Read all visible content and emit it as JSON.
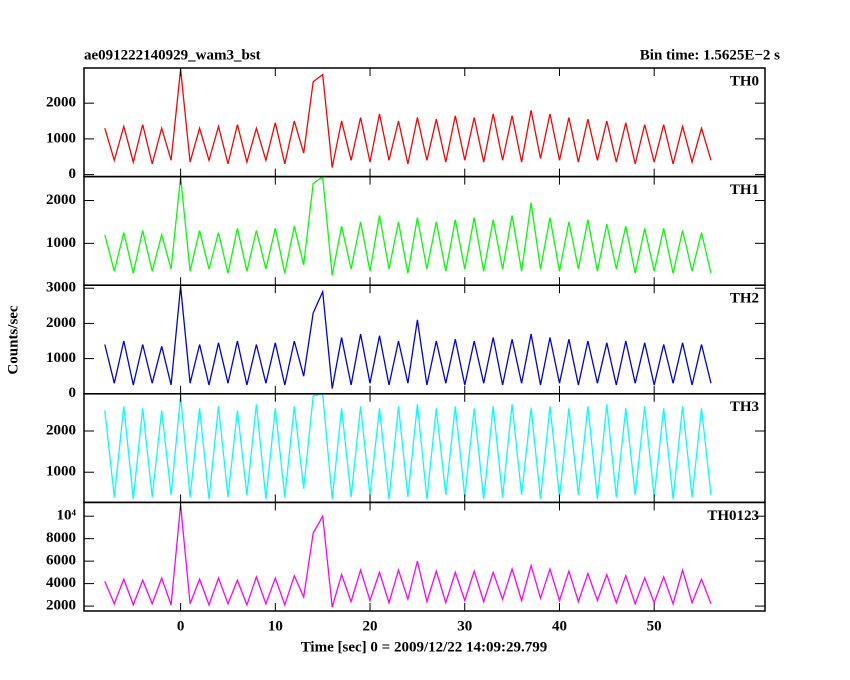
{
  "chart_data": {
    "type": "line",
    "title": "ae091222140929_wam3_bst",
    "subtitle": "Bin time: 1.5625E−2 s",
    "xlabel": "Time [sec] 0 = 2009/12/22 14:09:29.799",
    "ylabel": "Counts/sec",
    "xlim": [
      -10.2,
      61.7
    ],
    "xticks": [
      0,
      10,
      20,
      30,
      40,
      50
    ],
    "x": [
      -8,
      -7,
      -6,
      -5,
      -4,
      -3,
      -2,
      -1,
      0,
      1,
      2,
      3,
      4,
      5,
      6,
      7,
      8,
      9,
      10,
      11,
      12,
      13,
      14,
      15,
      16,
      17,
      18,
      19,
      20,
      21,
      22,
      23,
      24,
      25,
      26,
      27,
      28,
      29,
      30,
      31,
      32,
      33,
      34,
      35,
      36,
      37,
      38,
      39,
      40,
      41,
      42,
      43,
      44,
      45,
      46,
      47,
      48,
      49,
      50,
      51,
      52,
      53,
      54,
      55,
      56
    ],
    "panels": [
      {
        "name": "TH0",
        "color": "#ff0000",
        "ylim": [
          -56,
          2985
        ],
        "yticks": [
          0,
          1000,
          2000
        ],
        "values": [
          1300,
          400,
          1350,
          350,
          1400,
          300,
          1300,
          400,
          2950,
          350,
          1300,
          400,
          1350,
          300,
          1400,
          350,
          1300,
          400,
          1450,
          300,
          1500,
          600,
          2600,
          2800,
          200,
          1500,
          400,
          1600,
          350,
          1700,
          400,
          1500,
          300,
          1600,
          400,
          1550,
          350,
          1650,
          400,
          1600,
          350,
          1700,
          400,
          1650,
          350,
          1800,
          450,
          1700,
          400,
          1600,
          350,
          1550,
          400,
          1500,
          350,
          1450,
          300,
          1400,
          350,
          1400,
          300,
          1350,
          350,
          1300,
          400
        ]
      },
      {
        "name": "TH1",
        "color": "#00ff00",
        "ylim": [
          23,
          2558
        ],
        "yticks": [
          1000,
          2000
        ],
        "values": [
          1200,
          350,
          1250,
          300,
          1300,
          350,
          1200,
          400,
          2550,
          350,
          1300,
          400,
          1250,
          300,
          1350,
          350,
          1300,
          400,
          1350,
          300,
          1400,
          500,
          2400,
          2550,
          250,
          1400,
          400,
          1500,
          350,
          1650,
          400,
          1500,
          300,
          1600,
          400,
          1500,
          350,
          1550,
          400,
          1600,
          350,
          1550,
          400,
          1650,
          350,
          1950,
          400,
          1600,
          350,
          1500,
          400,
          1550,
          350,
          1450,
          400,
          1400,
          300,
          1350,
          350,
          1350,
          300,
          1300,
          350,
          1250,
          300
        ]
      },
      {
        "name": "TH2",
        "color": "#0000e0",
        "ylim": [
          0,
          3086
        ],
        "yticks": [
          0,
          1000,
          2000,
          3000
        ],
        "values": [
          1400,
          300,
          1500,
          250,
          1400,
          300,
          1350,
          250,
          3050,
          300,
          1400,
          250,
          1450,
          300,
          1500,
          250,
          1400,
          300,
          1450,
          250,
          1500,
          500,
          2300,
          2900,
          150,
          1600,
          250,
          1700,
          300,
          1650,
          250,
          1500,
          300,
          2100,
          250,
          1500,
          300,
          1550,
          250,
          1500,
          300,
          1600,
          250,
          1550,
          300,
          1700,
          250,
          1600,
          300,
          1550,
          250,
          1500,
          300,
          1450,
          250,
          1500,
          300,
          1450,
          250,
          1400,
          300,
          1450,
          250,
          1400,
          300
        ]
      },
      {
        "name": "TH3",
        "color": "#00ffff",
        "ylim": [
          268,
          2902
        ],
        "yticks": [
          1000,
          2000
        ],
        "values": [
          2500,
          400,
          2600,
          350,
          2550,
          400,
          2500,
          450,
          2850,
          400,
          2550,
          350,
          2600,
          400,
          2500,
          450,
          2650,
          350,
          2550,
          400,
          2600,
          600,
          2850,
          2900,
          350,
          2550,
          400,
          2600,
          450,
          2550,
          350,
          2600,
          400,
          2650,
          350,
          2550,
          450,
          2600,
          400,
          2550,
          350,
          2600,
          400,
          2650,
          450,
          2550,
          350,
          2600,
          400,
          2550,
          450,
          2600,
          350,
          2650,
          400,
          2550,
          450,
          2600,
          400,
          2550,
          350,
          2600,
          400,
          2550,
          450
        ]
      },
      {
        "name": "TH0123",
        "color": "#ff00ff",
        "ylim": [
          1561,
          11228
        ],
        "yticks": [
          2000,
          4000,
          6000,
          8000,
          {
            "value": 10000,
            "label": "10⁴"
          }
        ],
        "values": [
          4200,
          2200,
          4400,
          2100,
          4300,
          2200,
          4500,
          2100,
          11000,
          2200,
          4400,
          2100,
          4500,
          2200,
          4300,
          2100,
          4600,
          2200,
          4500,
          2100,
          4700,
          2800,
          8500,
          10000,
          1900,
          4800,
          2400,
          5200,
          2500,
          5000,
          2300,
          5200,
          2600,
          6000,
          2400,
          5100,
          2300,
          5000,
          2500,
          5100,
          2400,
          5000,
          2600,
          5300,
          2500,
          5600,
          2700,
          5300,
          2500,
          5100,
          2400,
          4900,
          2500,
          4800,
          2300,
          4700,
          2200,
          4500,
          2300,
          4600,
          2200,
          5200,
          2300,
          4400,
          2200
        ]
      }
    ]
  }
}
